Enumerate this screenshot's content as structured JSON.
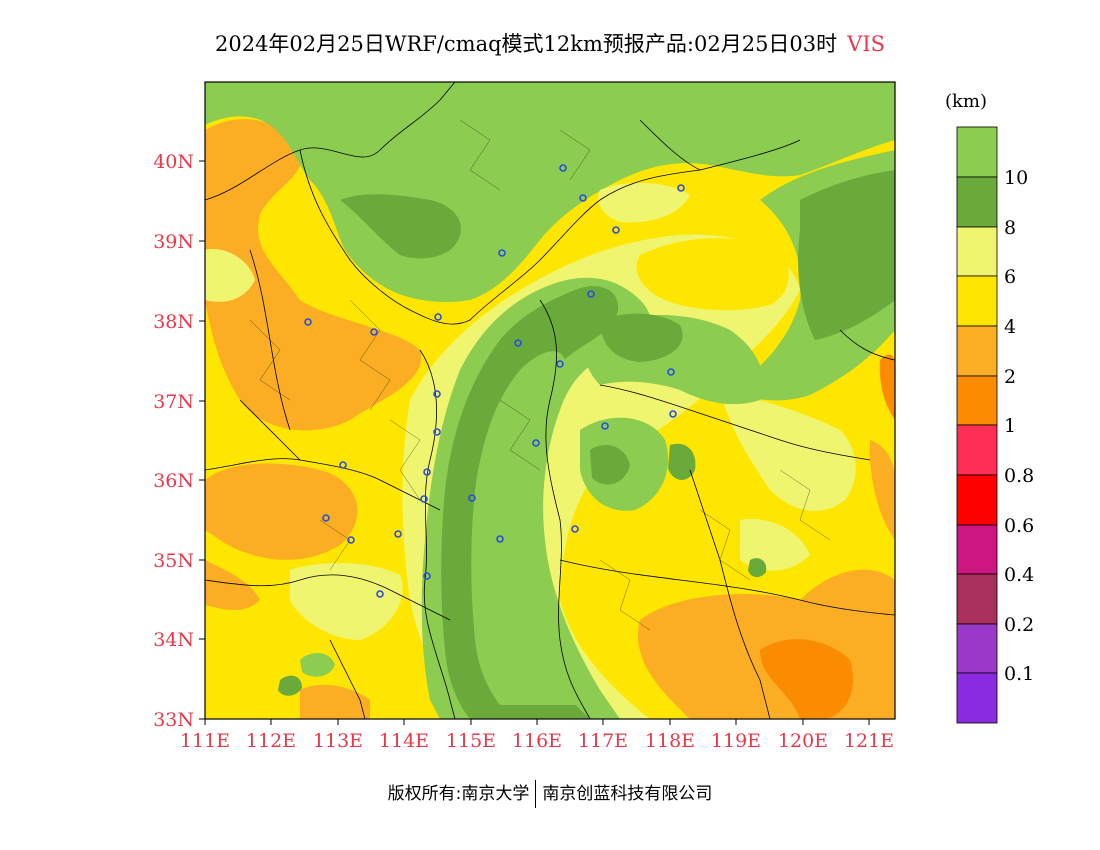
{
  "title": {
    "text": "2024年02月25日WRF/cmaq模式12km预报产品:02月25日03时",
    "variable": "VIS"
  },
  "map": {
    "lat_labels": [
      "40N",
      "39N",
      "38N",
      "37N",
      "36N",
      "35N",
      "34N",
      "33N"
    ],
    "lon_labels": [
      "111E",
      "112E",
      "113E",
      "114E",
      "115E",
      "116E",
      "117E",
      "118E",
      "119E",
      "120E",
      "121E"
    ],
    "axis_color": "#e8384a"
  },
  "legend": {
    "unit": "(km)",
    "labels": [
      "10",
      "8",
      "6",
      "4",
      "2",
      "1",
      "0.8",
      "0.6",
      "0.4",
      "0.2",
      "0.1"
    ],
    "colors": [
      "#8ccc50",
      "#6aaa3a",
      "#f0f570",
      "#ffe600",
      "#fbae24",
      "#fb8b00",
      "#ff2e56",
      "#ff0000",
      "#cc1680",
      "#a8305a",
      "#9a38c8",
      "#8a2be2"
    ]
  },
  "footer": {
    "left": "版权所有:南京大学",
    "right": "南京创蓝科技有限公司"
  }
}
